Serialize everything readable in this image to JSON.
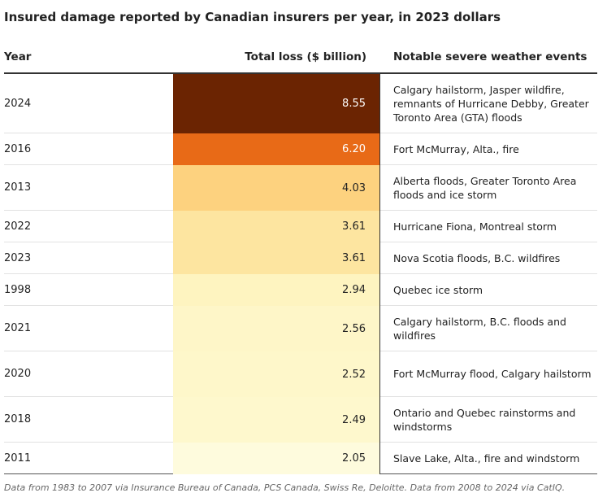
{
  "title": "Insured damage reported by Canadian insurers per year, in 2023 dollars",
  "headers": {
    "year": "Year",
    "loss": "Total loss ($ billion)",
    "events": "Notable severe weather events"
  },
  "footer": "Data from 1983 to 2007 via Insurance Bureau of Canada, PCS Canada, Swiss Re, Deloitte. Data from 2008 to 2024 via CatIQ.",
  "chart_data": {
    "type": "table",
    "title": "Insured damage reported by Canadian insurers per year, in 2023 dollars",
    "columns": [
      "Year",
      "Total loss ($ billion)",
      "Notable severe weather events"
    ],
    "rows": [
      {
        "year": "2024",
        "loss": "8.55",
        "events": "Calgary hailstorm, Jasper wildfire, remnants of Hurricane Debby, Greater Toronto Area (GTA) floods",
        "color": "#6b2402",
        "text_color": "#ffffff"
      },
      {
        "year": "2016",
        "loss": "6.20",
        "events": "Fort McMurray, Alta., fire",
        "color": "#e86a17",
        "text_color": "#ffffff"
      },
      {
        "year": "2013",
        "loss": "4.03",
        "events": "Alberta floods, Greater Toronto Area floods and ice storm",
        "color": "#fdd27f",
        "text_color": "#222222"
      },
      {
        "year": "2022",
        "loss": "3.61",
        "events": "Hurricane Fiona, Montreal storm",
        "color": "#fde5a0",
        "text_color": "#222222"
      },
      {
        "year": "2023",
        "loss": "3.61",
        "events": "Nova Scotia floods, B.C. wildfires",
        "color": "#fde5a0",
        "text_color": "#222222"
      },
      {
        "year": "1998",
        "loss": "2.94",
        "events": "Quebec ice storm",
        "color": "#fef4c0",
        "text_color": "#222222"
      },
      {
        "year": "2021",
        "loss": "2.56",
        "events": "Calgary hailstorm, B.C. floods and wildfires",
        "color": "#fef6c8",
        "text_color": "#222222"
      },
      {
        "year": "2020",
        "loss": "2.52",
        "events": "Fort McMurray flood, Calgary hailstorm",
        "color": "#fef7ca",
        "text_color": "#222222"
      },
      {
        "year": "2018",
        "loss": "2.49",
        "events": "Ontario and Quebec rainstorms and windstorms",
        "color": "#fef8cd",
        "text_color": "#222222"
      },
      {
        "year": "2011",
        "loss": "2.05",
        "events": "Slave Lake, Alta., fire and windstorm",
        "color": "#fefbdd",
        "text_color": "#222222"
      }
    ]
  }
}
